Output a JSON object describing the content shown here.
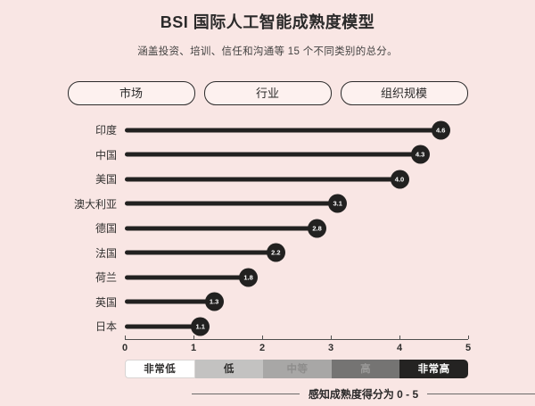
{
  "header": {
    "title": "BSI 国际人工智能成熟度模型",
    "subtitle": "涵盖投资、培训、信任和沟通等 15 个不同类别的总分。"
  },
  "tabs": [
    {
      "label": "市场"
    },
    {
      "label": "行业"
    },
    {
      "label": "组织规模"
    }
  ],
  "chart_data": {
    "type": "bar",
    "style": "lollipop",
    "orientation": "horizontal",
    "title": "BSI 国际人工智能成熟度模型",
    "categories": [
      "印度",
      "中国",
      "美国",
      "澳大利亚",
      "德国",
      "法国",
      "荷兰",
      "英国",
      "日本"
    ],
    "values": [
      4.6,
      4.3,
      4.0,
      3.1,
      2.8,
      2.2,
      1.8,
      1.3,
      1.1
    ],
    "xlim": [
      0,
      5
    ],
    "x_ticks": [
      0,
      1,
      2,
      3,
      4,
      5
    ],
    "xlabel": "感知成熟度得分为 0 - 5",
    "ylabel": "",
    "grid": false,
    "bar_color": "#222120",
    "legend_position": "bottom"
  },
  "legend": {
    "segments": [
      {
        "label": "非常低",
        "bg": "#ffffff",
        "text_color": "#2e2d2c"
      },
      {
        "label": "低",
        "bg": "#c3c2c1",
        "text_color": "#2e2d2c"
      },
      {
        "label": "中等",
        "bg": "#a8a7a6",
        "text_color": "#8e8d8c"
      },
      {
        "label": "高",
        "bg": "#757473",
        "text_color": "#9b9a99"
      },
      {
        "label": "非常高",
        "bg": "#242322",
        "text_color": "#ffffff"
      }
    ]
  },
  "footer": {
    "caption": "感知成熟度得分为 0 - 5"
  },
  "colors": {
    "background": "#f9e6e4",
    "accent_dark": "#222120"
  }
}
